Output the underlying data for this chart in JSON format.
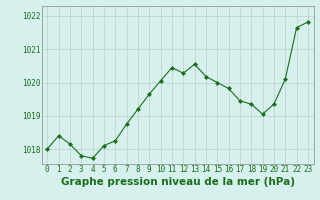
{
  "x": [
    0,
    1,
    2,
    3,
    4,
    5,
    6,
    7,
    8,
    9,
    10,
    11,
    12,
    13,
    14,
    15,
    16,
    17,
    18,
    19,
    20,
    21,
    22,
    23
  ],
  "y": [
    1018.0,
    1018.4,
    1018.15,
    1017.8,
    1017.72,
    1018.1,
    1018.25,
    1018.75,
    1019.2,
    1019.65,
    1020.05,
    1020.45,
    1020.28,
    1020.55,
    1020.18,
    1020.0,
    1019.82,
    1019.45,
    1019.35,
    1019.05,
    1019.35,
    1020.1,
    1021.65,
    1021.82
  ],
  "line_color": "#1a6e1a",
  "marker_color": "#1a6e1a",
  "bg_color": "#d6f0ee",
  "grid_color": "#b8b8b8",
  "xlabel": "Graphe pression niveau de la mer (hPa)",
  "xlabel_color": "#1a6e1a",
  "ymin": 1017.55,
  "ymax": 1022.3,
  "yticks": [
    1018,
    1019,
    1020,
    1021,
    1022
  ],
  "xticks": [
    0,
    1,
    2,
    3,
    4,
    5,
    6,
    7,
    8,
    9,
    10,
    11,
    12,
    13,
    14,
    15,
    16,
    17,
    18,
    19,
    20,
    21,
    22,
    23
  ],
  "tick_fontsize": 5.5,
  "xlabel_fontsize": 7.5
}
